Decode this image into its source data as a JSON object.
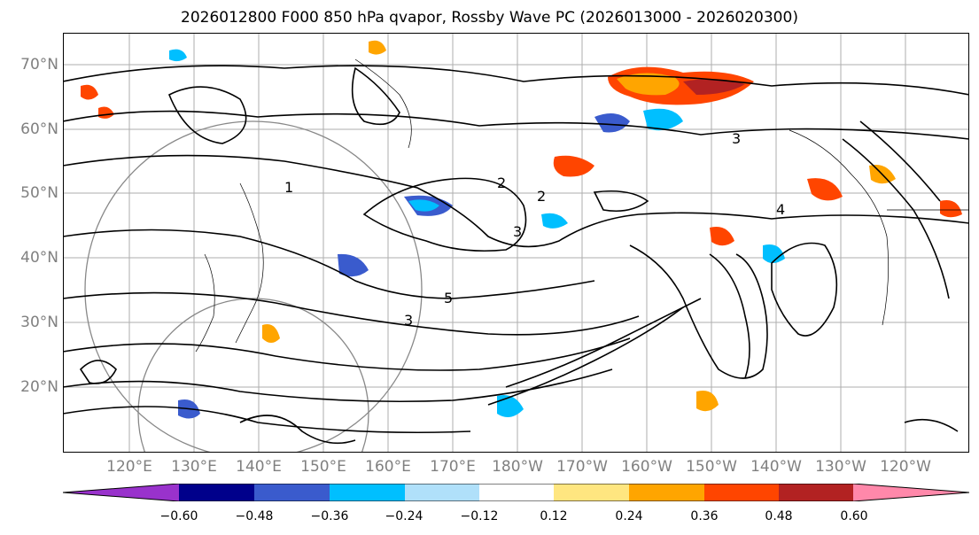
{
  "title": "2026012800 F000 850 hPa qvapor, Rossby Wave PC (2026013000 - 2026020300)",
  "latitude_labels": [
    "70°N",
    "60°N",
    "50°N",
    "40°N",
    "30°N",
    "20°N"
  ],
  "longitude_labels": [
    "120°E",
    "130°E",
    "140°E",
    "150°E",
    "160°E",
    "170°E",
    "180°W",
    "170°W",
    "160°W",
    "150°W",
    "140°W",
    "130°W",
    "120°W"
  ],
  "map_extent": {
    "lon_min": 113,
    "lon_max": 253,
    "lat_min": 10,
    "lat_max": 75
  },
  "colorbar": {
    "ticks": [
      "−0.60",
      "−0.48",
      "−0.36",
      "−0.24",
      "−0.12",
      "0.12",
      "0.24",
      "0.36",
      "0.48",
      "0.60"
    ],
    "colors": [
      "#9932cc",
      "#00008b",
      "#3a5bcd",
      "#00bfff",
      "#b0e0fa",
      "#ffffff",
      "#ffe680",
      "#ffa500",
      "#ff4500",
      "#b22222",
      "#ff88aa"
    ]
  },
  "contour_labels": [
    "1",
    "2",
    "3",
    "2",
    "3",
    "4",
    "5",
    "3"
  ]
}
